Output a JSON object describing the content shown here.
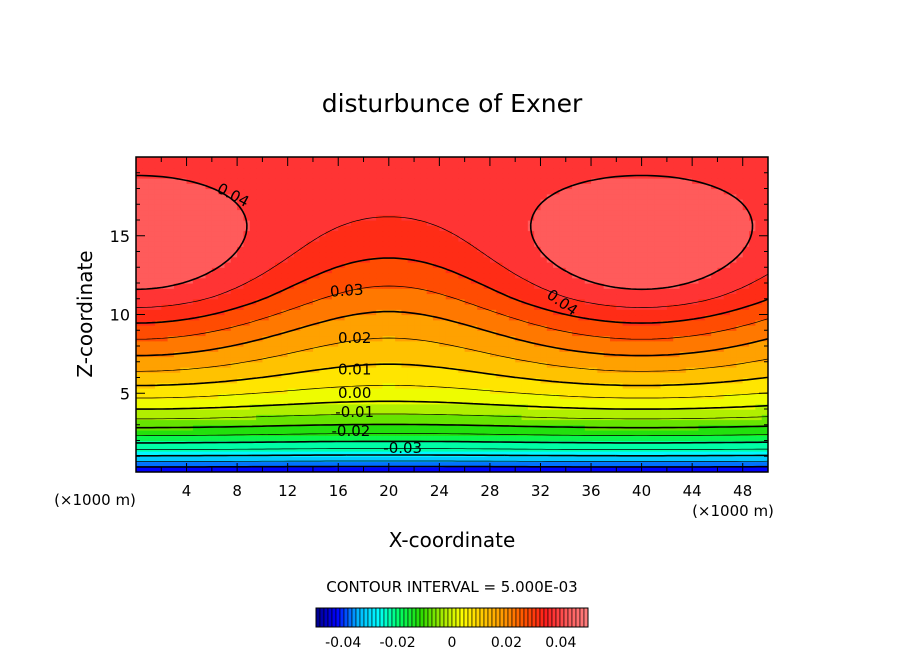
{
  "chart_data": {
    "type": "heatmap",
    "subtype": "filled-contour",
    "title": "disturbunce of Exner",
    "xlabel": "X-coordinate",
    "ylabel": "Z-coordinate",
    "x_unit_label": "(×1000 m)",
    "x_unit_label_right": "(×1000 m)",
    "xlim": [
      0,
      50
    ],
    "ylim": [
      0,
      20
    ],
    "x_ticks": [
      4,
      8,
      12,
      16,
      20,
      24,
      28,
      32,
      36,
      40,
      44,
      48
    ],
    "y_ticks": [
      5,
      10,
      15
    ],
    "contour_interval_text": "CONTOUR INTERVAL = 5.000E-03",
    "contour_interval": 0.005,
    "contour_labels": [
      {
        "text": "0.04",
        "x": 7.5,
        "z": 17.3,
        "angle": 28
      },
      {
        "text": "0.04",
        "x": 33.5,
        "z": 10.5,
        "angle": 35
      },
      {
        "text": "0.03",
        "x": 16.7,
        "z": 11.2,
        "angle": -4
      },
      {
        "text": "0.02",
        "x": 17.3,
        "z": 8.2,
        "angle": 0
      },
      {
        "text": "0.01",
        "x": 17.3,
        "z": 6.2,
        "angle": 0
      },
      {
        "text": "0.00",
        "x": 17.3,
        "z": 4.7,
        "angle": 0
      },
      {
        "text": "-0.01",
        "x": 17.3,
        "z": 3.5,
        "angle": 0
      },
      {
        "text": "-0.02",
        "x": 17.0,
        "z": 2.3,
        "angle": 0
      },
      {
        "text": "-0.03",
        "x": 21.1,
        "z": 1.2,
        "angle": 0
      }
    ],
    "value_range": [
      -0.045,
      0.047
    ],
    "colorbar": {
      "min": -0.05,
      "max": 0.05,
      "tick_values": [
        -0.04,
        -0.02,
        0,
        0.02,
        0.04
      ],
      "tick_labels": [
        "-0.04",
        "-0.02",
        "0",
        "0.02",
        "0.04"
      ]
    },
    "colormap": [
      "#00008c",
      "#0000ff",
      "#00b4ff",
      "#00ffff",
      "#00ff64",
      "#28dc00",
      "#a0eb00",
      "#ffff00",
      "#ffc800",
      "#ff9600",
      "#ff5000",
      "#ff1e1e",
      "#ff5a5a",
      "#ff8080"
    ]
  }
}
